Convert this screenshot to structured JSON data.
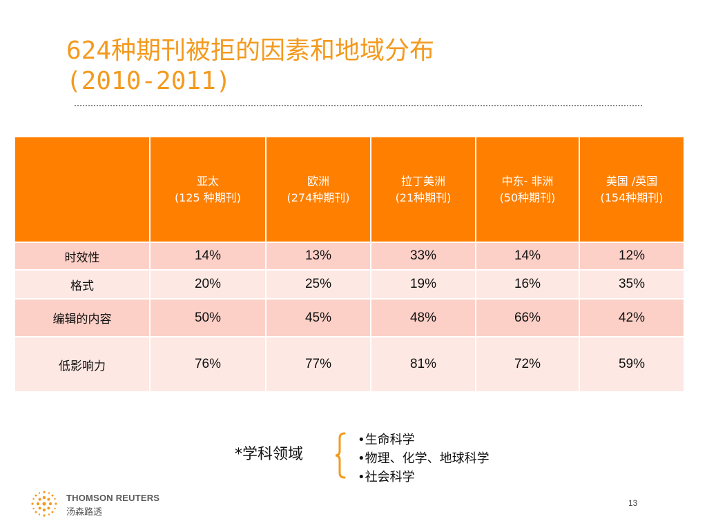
{
  "title": {
    "line1": "624种期刊被拒的因素和地域分布",
    "line2": "(2010-2011)"
  },
  "table": {
    "columns": [
      {
        "name": "亚太",
        "sub": "(125 种期刊)"
      },
      {
        "name": "欧洲",
        "sub": "(274种期刊)"
      },
      {
        "name": "拉丁美洲",
        "sub": "(21种期刊)"
      },
      {
        "name": "中东- 非洲",
        "sub": "(50种期刊)"
      },
      {
        "name": "美国 /英国",
        "sub": "(154种期刊)"
      }
    ],
    "rows": [
      {
        "label": "时效性",
        "values": [
          "14%",
          "13%",
          "33%",
          "14%",
          "12%"
        ]
      },
      {
        "label": "格式",
        "values": [
          "20%",
          "25%",
          "19%",
          "16%",
          "35%"
        ]
      },
      {
        "label": "编辑的内容",
        "values": [
          "50%",
          "45%",
          "48%",
          "66%",
          "42%"
        ]
      },
      {
        "label": "低影响力",
        "values": [
          "76%",
          "77%",
          "81%",
          "72%",
          "59%"
        ]
      }
    ]
  },
  "legend": {
    "label": "*学科领域",
    "items": [
      "•生命科学",
      "•物理、化学、地球科学",
      "•社会科学"
    ]
  },
  "footer": {
    "brand": "THOMSON REUTERS",
    "brand_cn": "汤森路透",
    "page_number": "13"
  },
  "colors": {
    "accent": "#ff7f00",
    "title": "#f39a1e",
    "row_odd": "#fdd0c7",
    "row_even": "#fde8e3"
  }
}
